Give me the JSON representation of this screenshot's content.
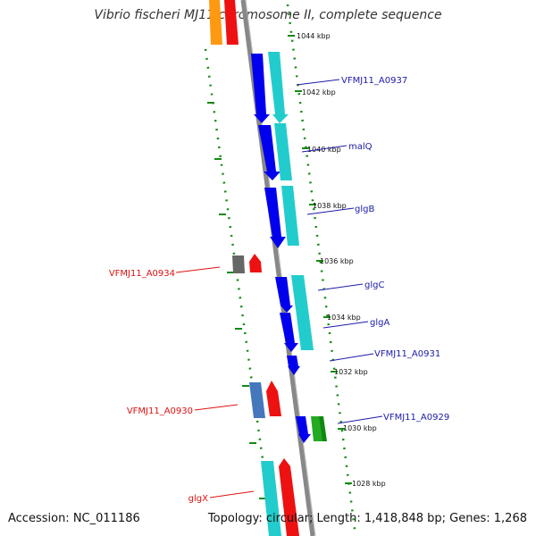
{
  "title": "Vibrio fischeri MJ11 chromosome II, complete sequence",
  "accession": "Accession: NC_011186",
  "summary": "Topology: circular; Length: 1,418,848 bp; Genes: 1,268",
  "colors": {
    "ruler": "#148a14",
    "label_forward": "#1a1aaa",
    "label_reverse": "#dd1111",
    "backbone": "#888888"
  },
  "ruler_labels": [
    "1044 kbp",
    "1042 kbp",
    "1040 kbp",
    "1038 kbp",
    "1036 kbp",
    "1034 kbp",
    "1032 kbp",
    "1030 kbp",
    "1028 kbp"
  ],
  "gene_labels": {
    "VFMJ11_A0937": "VFMJ11_A0937",
    "malQ": "malQ",
    "glgB": "glgB",
    "glgC": "glgC",
    "glgA": "glgA",
    "VFMJ11_A0931": "VFMJ11_A0931",
    "VFMJ11_A0929": "VFMJ11_A0929",
    "VFMJ11_A0934": "VFMJ11_A0934",
    "VFMJ11_A0930": "VFMJ11_A0930",
    "glgX": "glgX"
  }
}
